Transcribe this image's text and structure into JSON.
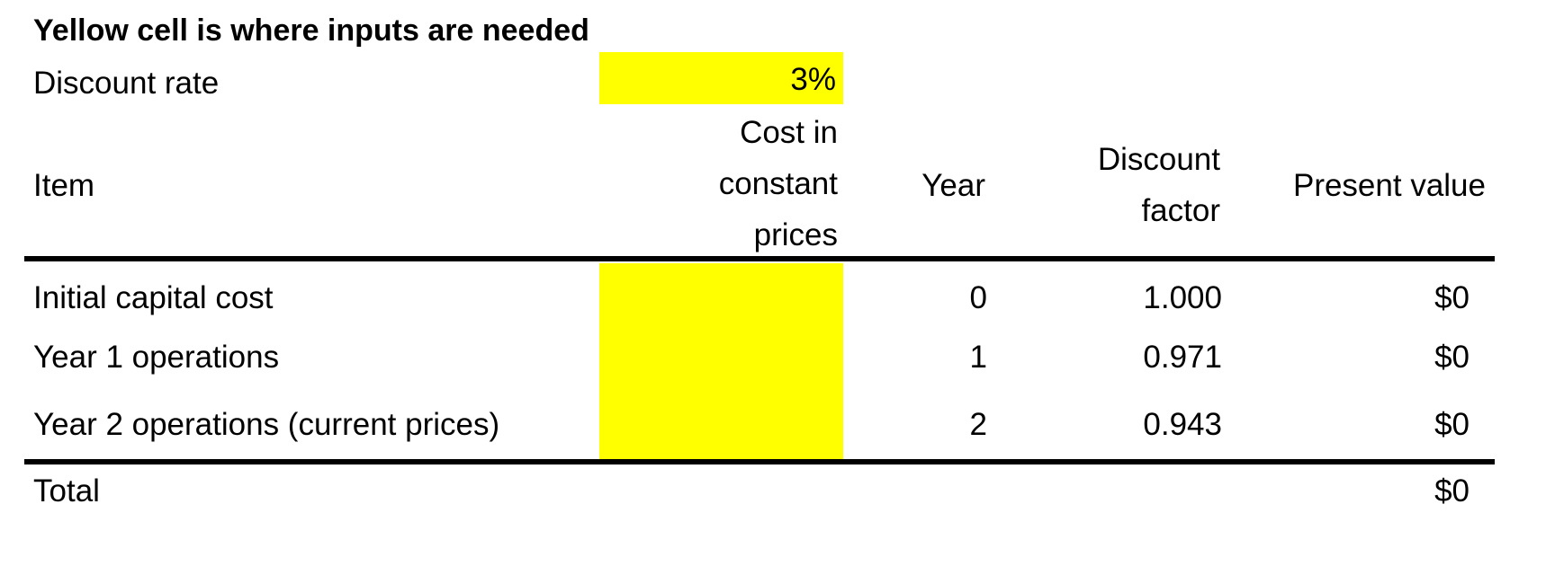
{
  "instruction": "Yellow cell is where inputs are needed",
  "discount_rate": {
    "label": "Discount rate",
    "value": "3%"
  },
  "input_color": "#ffff00",
  "table": {
    "headers": {
      "item": "Item",
      "cost_line1": "Cost in",
      "cost_line2": "constant",
      "cost_line3": "prices",
      "year": "Year",
      "factor_line1": "Discount",
      "factor_line2": "factor",
      "present_value": "Present value"
    },
    "rows": [
      {
        "item": "Initial capital cost",
        "cost": "",
        "year": "0",
        "factor": "1.000",
        "pv": "$0"
      },
      {
        "item": "Year 1 operations",
        "cost": "",
        "year": "1",
        "factor": "0.971",
        "pv": "$0"
      },
      {
        "item": "Year 2 operations (current prices)",
        "cost": "",
        "year": "2",
        "factor": "0.943",
        "pv": "$0"
      }
    ],
    "total": {
      "label": "Total",
      "pv": "$0"
    }
  }
}
